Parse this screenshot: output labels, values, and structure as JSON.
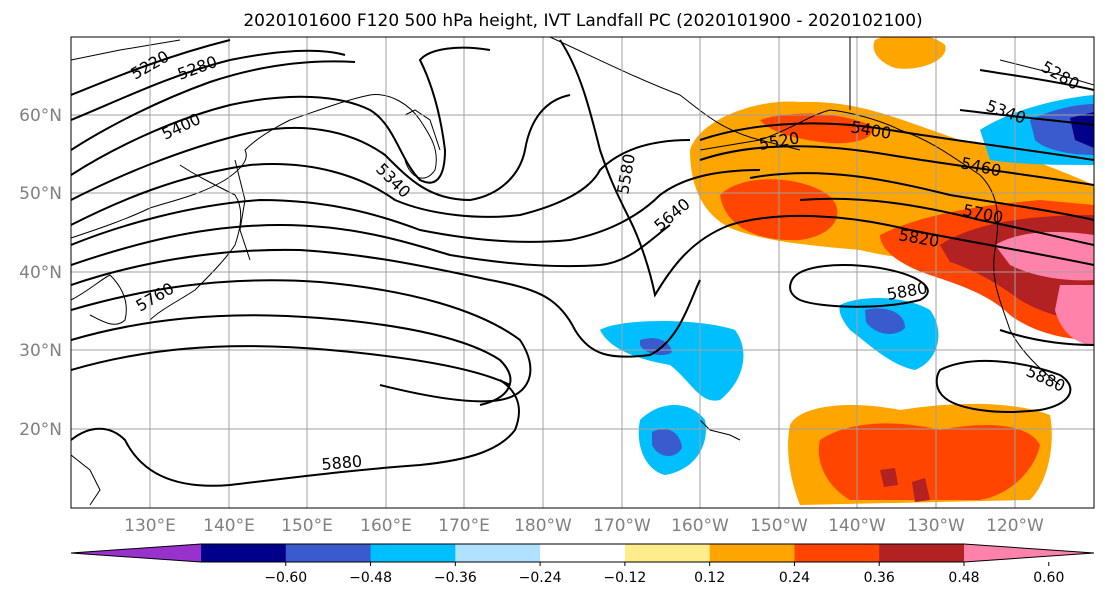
{
  "title": "2020101600 F120 500 hPa height, IVT Landfall PC (2020101900 - 2020102100)",
  "lat_labels": [
    "60°N",
    "50°N",
    "40°N",
    "30°N",
    "20°N"
  ],
  "lon_labels": [
    "130°E",
    "140°E",
    "150°E",
    "160°E",
    "170°E",
    "180°W",
    "170°W",
    "160°W",
    "150°W",
    "140°W",
    "130°W",
    "120°W"
  ],
  "contour_labels": [
    "5220",
    "5280",
    "5400",
    "5340",
    "5580",
    "5640",
    "5520",
    "5400",
    "5340",
    "5460",
    "5700",
    "5820",
    "5880",
    "5880",
    "5880",
    "5760",
    "5280"
  ],
  "colorbar": {
    "ticks": [
      "−0.60",
      "−0.48",
      "−0.36",
      "−0.24",
      "−0.12",
      "0.12",
      "0.24",
      "0.36",
      "0.48",
      "0.60"
    ],
    "colors": [
      "#9932cc",
      "#00008b",
      "#3a5bcd",
      "#00bfff",
      "#b0e2ff",
      "#ffffff",
      "#ffec8b",
      "#ffa500",
      "#ff4500",
      "#b22222",
      "#ff82ab"
    ]
  },
  "colors": {
    "contour": "#000000",
    "grid": "#a0a0a0",
    "coast": "#000000"
  }
}
